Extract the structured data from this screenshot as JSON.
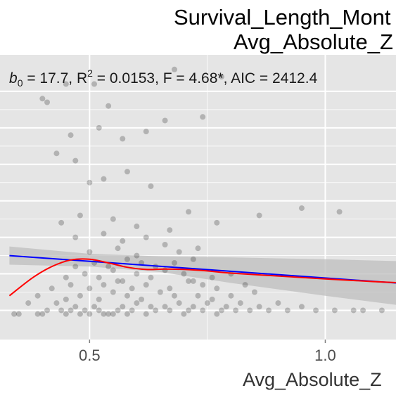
{
  "chart_data": {
    "type": "scatter",
    "title_line1": "Survival_Length_Mont",
    "title_line2": "Avg_Absolute_Z",
    "xlabel": "Avg_Absolute_Z",
    "ylabel": "",
    "annotation": {
      "b0_symbol": "b",
      "b0_subscript": "0",
      "b0_value": " = 17.7,  ",
      "r2_symbol": "R",
      "r2_superscript": "2",
      "r2_value": " = 0.0153,  F = 4.68*,  AIC = 2412.4"
    },
    "x_ticks": [
      {
        "value": 0.5,
        "label": "0.5"
      },
      {
        "value": 1.0,
        "label": "1.0"
      }
    ],
    "xlim": [
      0.31,
      1.15
    ],
    "ylim": [
      -8,
      70
    ],
    "y_major_grid": [
      0,
      10,
      20,
      30,
      40,
      50,
      60
    ],
    "grid": true,
    "colors": {
      "panel": "#e5e5e5",
      "grid": "#ffffff",
      "points": "#000000",
      "linear_fit": "#0000ff",
      "loess_fit": "#ff0000",
      "ci_band": "#bdbdbd"
    },
    "linear_fit": {
      "x": [
        0.33,
        1.15
      ],
      "y": [
        15,
        7.5
      ]
    },
    "ci_band": {
      "x": [
        0.33,
        0.5,
        0.65,
        0.8,
        1.0,
        1.15
      ],
      "upper": [
        17.5,
        15.5,
        14.8,
        14.5,
        14.0,
        13.5
      ],
      "lower": [
        12.5,
        12.0,
        10.5,
        7.5,
        4.0,
        1.5
      ]
    },
    "loess_fit": {
      "x": [
        0.33,
        0.38,
        0.42,
        0.46,
        0.5,
        0.54,
        0.58,
        0.62,
        0.66,
        0.7,
        0.75,
        0.8,
        0.9,
        1.0,
        1.1,
        1.15
      ],
      "y": [
        4.0,
        9.0,
        12.0,
        13.8,
        14.0,
        13.0,
        11.8,
        11.2,
        11.3,
        11.2,
        10.8,
        10.2,
        9.4,
        8.6,
        7.9,
        7.6
      ]
    },
    "points": {
      "x": [
        0.34,
        0.35,
        0.39,
        0.4,
        0.45,
        0.48,
        0.55,
        0.58,
        0.7,
        0.77,
        0.5,
        0.53,
        0.54,
        0.62,
        0.41,
        0.44,
        0.46,
        0.49,
        0.52,
        0.56,
        0.59,
        0.64,
        0.67,
        0.71,
        0.74,
        0.78,
        0.81,
        0.84,
        0.88,
        0.92,
        0.98,
        1.02,
        1.06,
        1.08,
        1.12,
        0.37,
        0.43,
        0.47,
        0.51,
        0.57,
        0.6,
        0.63,
        0.66,
        0.69,
        0.72,
        0.75,
        0.79,
        0.82,
        0.86,
        0.9,
        0.95,
        0.39,
        0.45,
        0.48,
        0.52,
        0.55,
        0.58,
        0.61,
        0.65,
        0.68,
        0.73,
        0.76,
        0.8,
        0.85,
        0.42,
        0.46,
        0.5,
        0.53,
        0.56,
        0.59,
        0.62,
        0.67,
        0.71,
        0.74,
        0.77,
        0.83,
        0.45,
        0.49,
        0.52,
        0.55,
        0.57,
        0.6,
        0.63,
        0.66,
        0.7,
        0.72,
        0.76,
        0.8,
        0.47,
        0.51,
        0.54,
        0.58,
        0.61,
        0.64,
        0.68,
        0.72,
        0.5,
        0.56,
        0.6,
        0.66,
        0.69,
        0.73,
        0.47,
        0.53,
        0.57,
        0.62,
        0.67,
        0.44,
        0.48,
        0.55,
        0.6,
        0.71,
        0.77,
        0.86,
        0.95,
        1.03,
        0.5,
        0.53,
        0.58,
        0.63,
        0.43,
        0.47,
        0.46,
        0.52,
        0.57,
        0.62,
        0.54,
        0.66,
        0.74,
        0.68,
        0.78,
        0.4,
        0.41,
        0.45,
        0.51
      ],
      "y": [
        -1,
        -1,
        -1,
        -1,
        -1,
        -1,
        -1,
        -1,
        -1,
        -1,
        -1,
        -1,
        -1,
        -1,
        0,
        0,
        0,
        0,
        0,
        0,
        0,
        0,
        0,
        0,
        0,
        0,
        0,
        0,
        0,
        0,
        0,
        0,
        0,
        0,
        0,
        2,
        2,
        1,
        1,
        1,
        2,
        1,
        1,
        2,
        1,
        2,
        1,
        2,
        1,
        2,
        1,
        4,
        3,
        4,
        3,
        5,
        4,
        3,
        5,
        4,
        4,
        3,
        4,
        5,
        6,
        7,
        6,
        7,
        8,
        6,
        7,
        6,
        8,
        7,
        6,
        7,
        9,
        10,
        9,
        11,
        8,
        10,
        9,
        11,
        10,
        8,
        9,
        10,
        12,
        13,
        12,
        14,
        13,
        12,
        13,
        14,
        16,
        17,
        15,
        18,
        16,
        17,
        20,
        21,
        19,
        20,
        22,
        24,
        26,
        25,
        23,
        27,
        24,
        26,
        28,
        27,
        35,
        36,
        38,
        34,
        43,
        41,
        48,
        50,
        47,
        49,
        56,
        52,
        53,
        66,
        64,
        58,
        57,
        62,
        62
      ]
    }
  }
}
